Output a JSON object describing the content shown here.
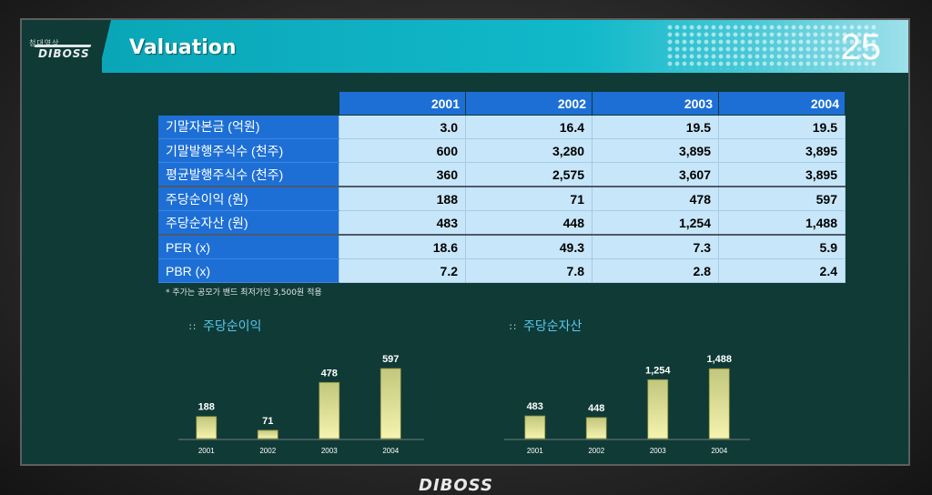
{
  "brand": {
    "logo_top": "첨대영상",
    "logo_main": "DIBOSS",
    "footer": "DIBOSS"
  },
  "header": {
    "title": "Valuation",
    "page_number": "25"
  },
  "table": {
    "columns": [
      "2001",
      "2002",
      "2003",
      "2004"
    ],
    "rows": [
      {
        "label": "기말자본금 (억원)",
        "values": [
          "3.0",
          "16.4",
          "19.5",
          "19.5"
        ]
      },
      {
        "label": "기말발행주식수 (천주)",
        "values": [
          "600",
          "3,280",
          "3,895",
          "3,895"
        ]
      },
      {
        "label": "평균발행주식수 (천주)",
        "values": [
          "360",
          "2,575",
          "3,607",
          "3,895"
        ]
      },
      {
        "label": "주당순이익 (원)",
        "values": [
          "188",
          "71",
          "478",
          "597"
        ]
      },
      {
        "label": "주당순자산 (원)",
        "values": [
          "483",
          "448",
          "1,254",
          "1,488"
        ]
      },
      {
        "label": "PER (x)",
        "values": [
          "18.6",
          "49.3",
          "7.3",
          "5.9"
        ]
      },
      {
        "label": "PBR (x)",
        "values": [
          "7.2",
          "7.8",
          "2.8",
          "2.4"
        ]
      }
    ],
    "note": "* 주가는 공모가 밴드 최저가인 3,500원 적용"
  },
  "chart_data": [
    {
      "type": "bar",
      "title": "주당순이익",
      "categories": [
        "2001",
        "2002",
        "2003",
        "2004"
      ],
      "values": [
        188,
        71,
        478,
        597
      ],
      "value_labels": [
        "188",
        "71",
        "478",
        "597"
      ],
      "ylim": [
        0,
        620
      ],
      "bar_color": "#e2e08a"
    },
    {
      "type": "bar",
      "title": "주당순자산",
      "categories": [
        "2001",
        "2002",
        "2003",
        "2004"
      ],
      "values": [
        483,
        448,
        1254,
        1488
      ],
      "value_labels": [
        "483",
        "448",
        "1,254",
        "1,488"
      ],
      "ylim": [
        0,
        1550
      ],
      "bar_color": "#e2e08a"
    }
  ]
}
